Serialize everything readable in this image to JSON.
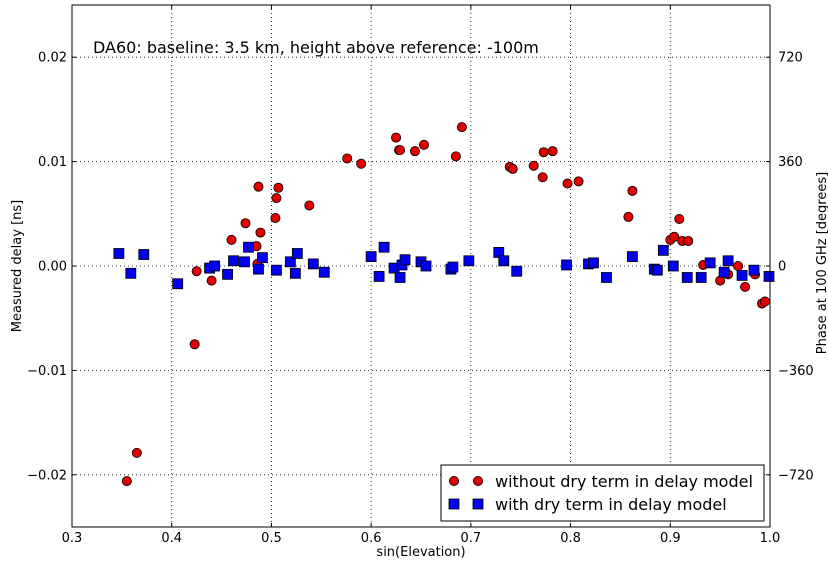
{
  "chart_data": {
    "type": "scatter",
    "annotation": "DA60: baseline: 3.5 km, height above reference: -100m",
    "xlabel": "sin(Elevation)",
    "ylabel": "Measured delay [ns]",
    "y2label": "Phase at 100 GHz [degrees]",
    "xlim": [
      0.3,
      1.0
    ],
    "ylim": [
      -0.025,
      0.025
    ],
    "x_ticks": [
      "0.3",
      "0.4",
      "0.5",
      "0.6",
      "0.7",
      "0.8",
      "0.9",
      "1.0"
    ],
    "y_ticks": [
      "0.02",
      "0.01",
      "0.00",
      "−0.01",
      "−0.02"
    ],
    "y_tick_values": [
      0.02,
      0.01,
      0.0,
      -0.01,
      -0.02
    ],
    "y2_ticks": [
      "720",
      "360",
      "0",
      "−360",
      "−720"
    ],
    "grid": true,
    "legend_position": "bottom-right",
    "series": [
      {
        "name": "without dry term in delay model",
        "marker": "circle",
        "color": "#e00000",
        "points": [
          [
            0.355,
            -0.0206
          ],
          [
            0.365,
            -0.0179
          ],
          [
            0.423,
            -0.0075
          ],
          [
            0.425,
            -0.0005
          ],
          [
            0.44,
            -0.0014
          ],
          [
            0.46,
            0.0025
          ],
          [
            0.474,
            0.0041
          ],
          [
            0.485,
            0.0019
          ],
          [
            0.486,
            0.0002
          ],
          [
            0.487,
            0.0076
          ],
          [
            0.489,
            0.0032
          ],
          [
            0.504,
            0.0046
          ],
          [
            0.505,
            0.0065
          ],
          [
            0.507,
            0.0075
          ],
          [
            0.538,
            0.0058
          ],
          [
            0.576,
            0.0103
          ],
          [
            0.59,
            0.0098
          ],
          [
            0.625,
            0.0123
          ],
          [
            0.628,
            0.0111
          ],
          [
            0.629,
            0.0111
          ],
          [
            0.644,
            0.011
          ],
          [
            0.653,
            0.0116
          ],
          [
            0.685,
            0.0105
          ],
          [
            0.691,
            0.0133
          ],
          [
            0.739,
            0.0095
          ],
          [
            0.742,
            0.0093
          ],
          [
            0.763,
            0.0096
          ],
          [
            0.772,
            0.0085
          ],
          [
            0.773,
            0.0109
          ],
          [
            0.782,
            0.011
          ],
          [
            0.797,
            0.0079
          ],
          [
            0.808,
            0.0081
          ],
          [
            0.858,
            0.0047
          ],
          [
            0.862,
            0.0072
          ],
          [
            0.9,
            0.0025
          ],
          [
            0.904,
            0.0028
          ],
          [
            0.909,
            0.0045
          ],
          [
            0.912,
            0.0024
          ],
          [
            0.918,
            0.0024
          ],
          [
            0.933,
            0.0001
          ],
          [
            0.95,
            -0.0014
          ],
          [
            0.958,
            -0.0008
          ],
          [
            0.968,
            0.0
          ],
          [
            0.975,
            -0.002
          ],
          [
            0.985,
            -0.0008
          ],
          [
            0.992,
            -0.0036
          ],
          [
            0.995,
            -0.0034
          ]
        ]
      },
      {
        "name": "with dry term in delay model",
        "marker": "square",
        "color": "#0000ee",
        "points": [
          [
            0.347,
            0.0012
          ],
          [
            0.359,
            -0.0007
          ],
          [
            0.372,
            0.0011
          ],
          [
            0.406,
            -0.0017
          ],
          [
            0.438,
            -0.0002
          ],
          [
            0.443,
            0.0
          ],
          [
            0.456,
            -0.0008
          ],
          [
            0.462,
            0.0005
          ],
          [
            0.473,
            0.0004
          ],
          [
            0.477,
            0.0018
          ],
          [
            0.487,
            -0.0003
          ],
          [
            0.491,
            0.0008
          ],
          [
            0.505,
            -0.0004
          ],
          [
            0.519,
            0.0004
          ],
          [
            0.524,
            -0.0007
          ],
          [
            0.526,
            0.0012
          ],
          [
            0.542,
            0.0002
          ],
          [
            0.553,
            -0.0006
          ],
          [
            0.6,
            0.0009
          ],
          [
            0.608,
            -0.001
          ],
          [
            0.613,
            0.0018
          ],
          [
            0.623,
            -0.0002
          ],
          [
            0.629,
            -0.0011
          ],
          [
            0.631,
            0.0001
          ],
          [
            0.634,
            0.0006
          ],
          [
            0.65,
            0.0004
          ],
          [
            0.655,
            0.0
          ],
          [
            0.68,
            -0.0003
          ],
          [
            0.682,
            -0.0001
          ],
          [
            0.698,
            0.0005
          ],
          [
            0.728,
            0.0013
          ],
          [
            0.733,
            0.0005
          ],
          [
            0.746,
            -0.0005
          ],
          [
            0.796,
            0.0001
          ],
          [
            0.818,
            0.0002
          ],
          [
            0.823,
            0.0003
          ],
          [
            0.836,
            -0.0011
          ],
          [
            0.862,
            0.0009
          ],
          [
            0.884,
            -0.0003
          ],
          [
            0.887,
            -0.0004
          ],
          [
            0.893,
            0.0015
          ],
          [
            0.903,
            0.0
          ],
          [
            0.917,
            -0.0011
          ],
          [
            0.931,
            -0.0011
          ],
          [
            0.94,
            0.0003
          ],
          [
            0.954,
            -0.0006
          ],
          [
            0.958,
            0.0005
          ],
          [
            0.972,
            -0.0009
          ],
          [
            0.984,
            -0.0004
          ],
          [
            0.999,
            -0.001
          ]
        ]
      }
    ]
  }
}
